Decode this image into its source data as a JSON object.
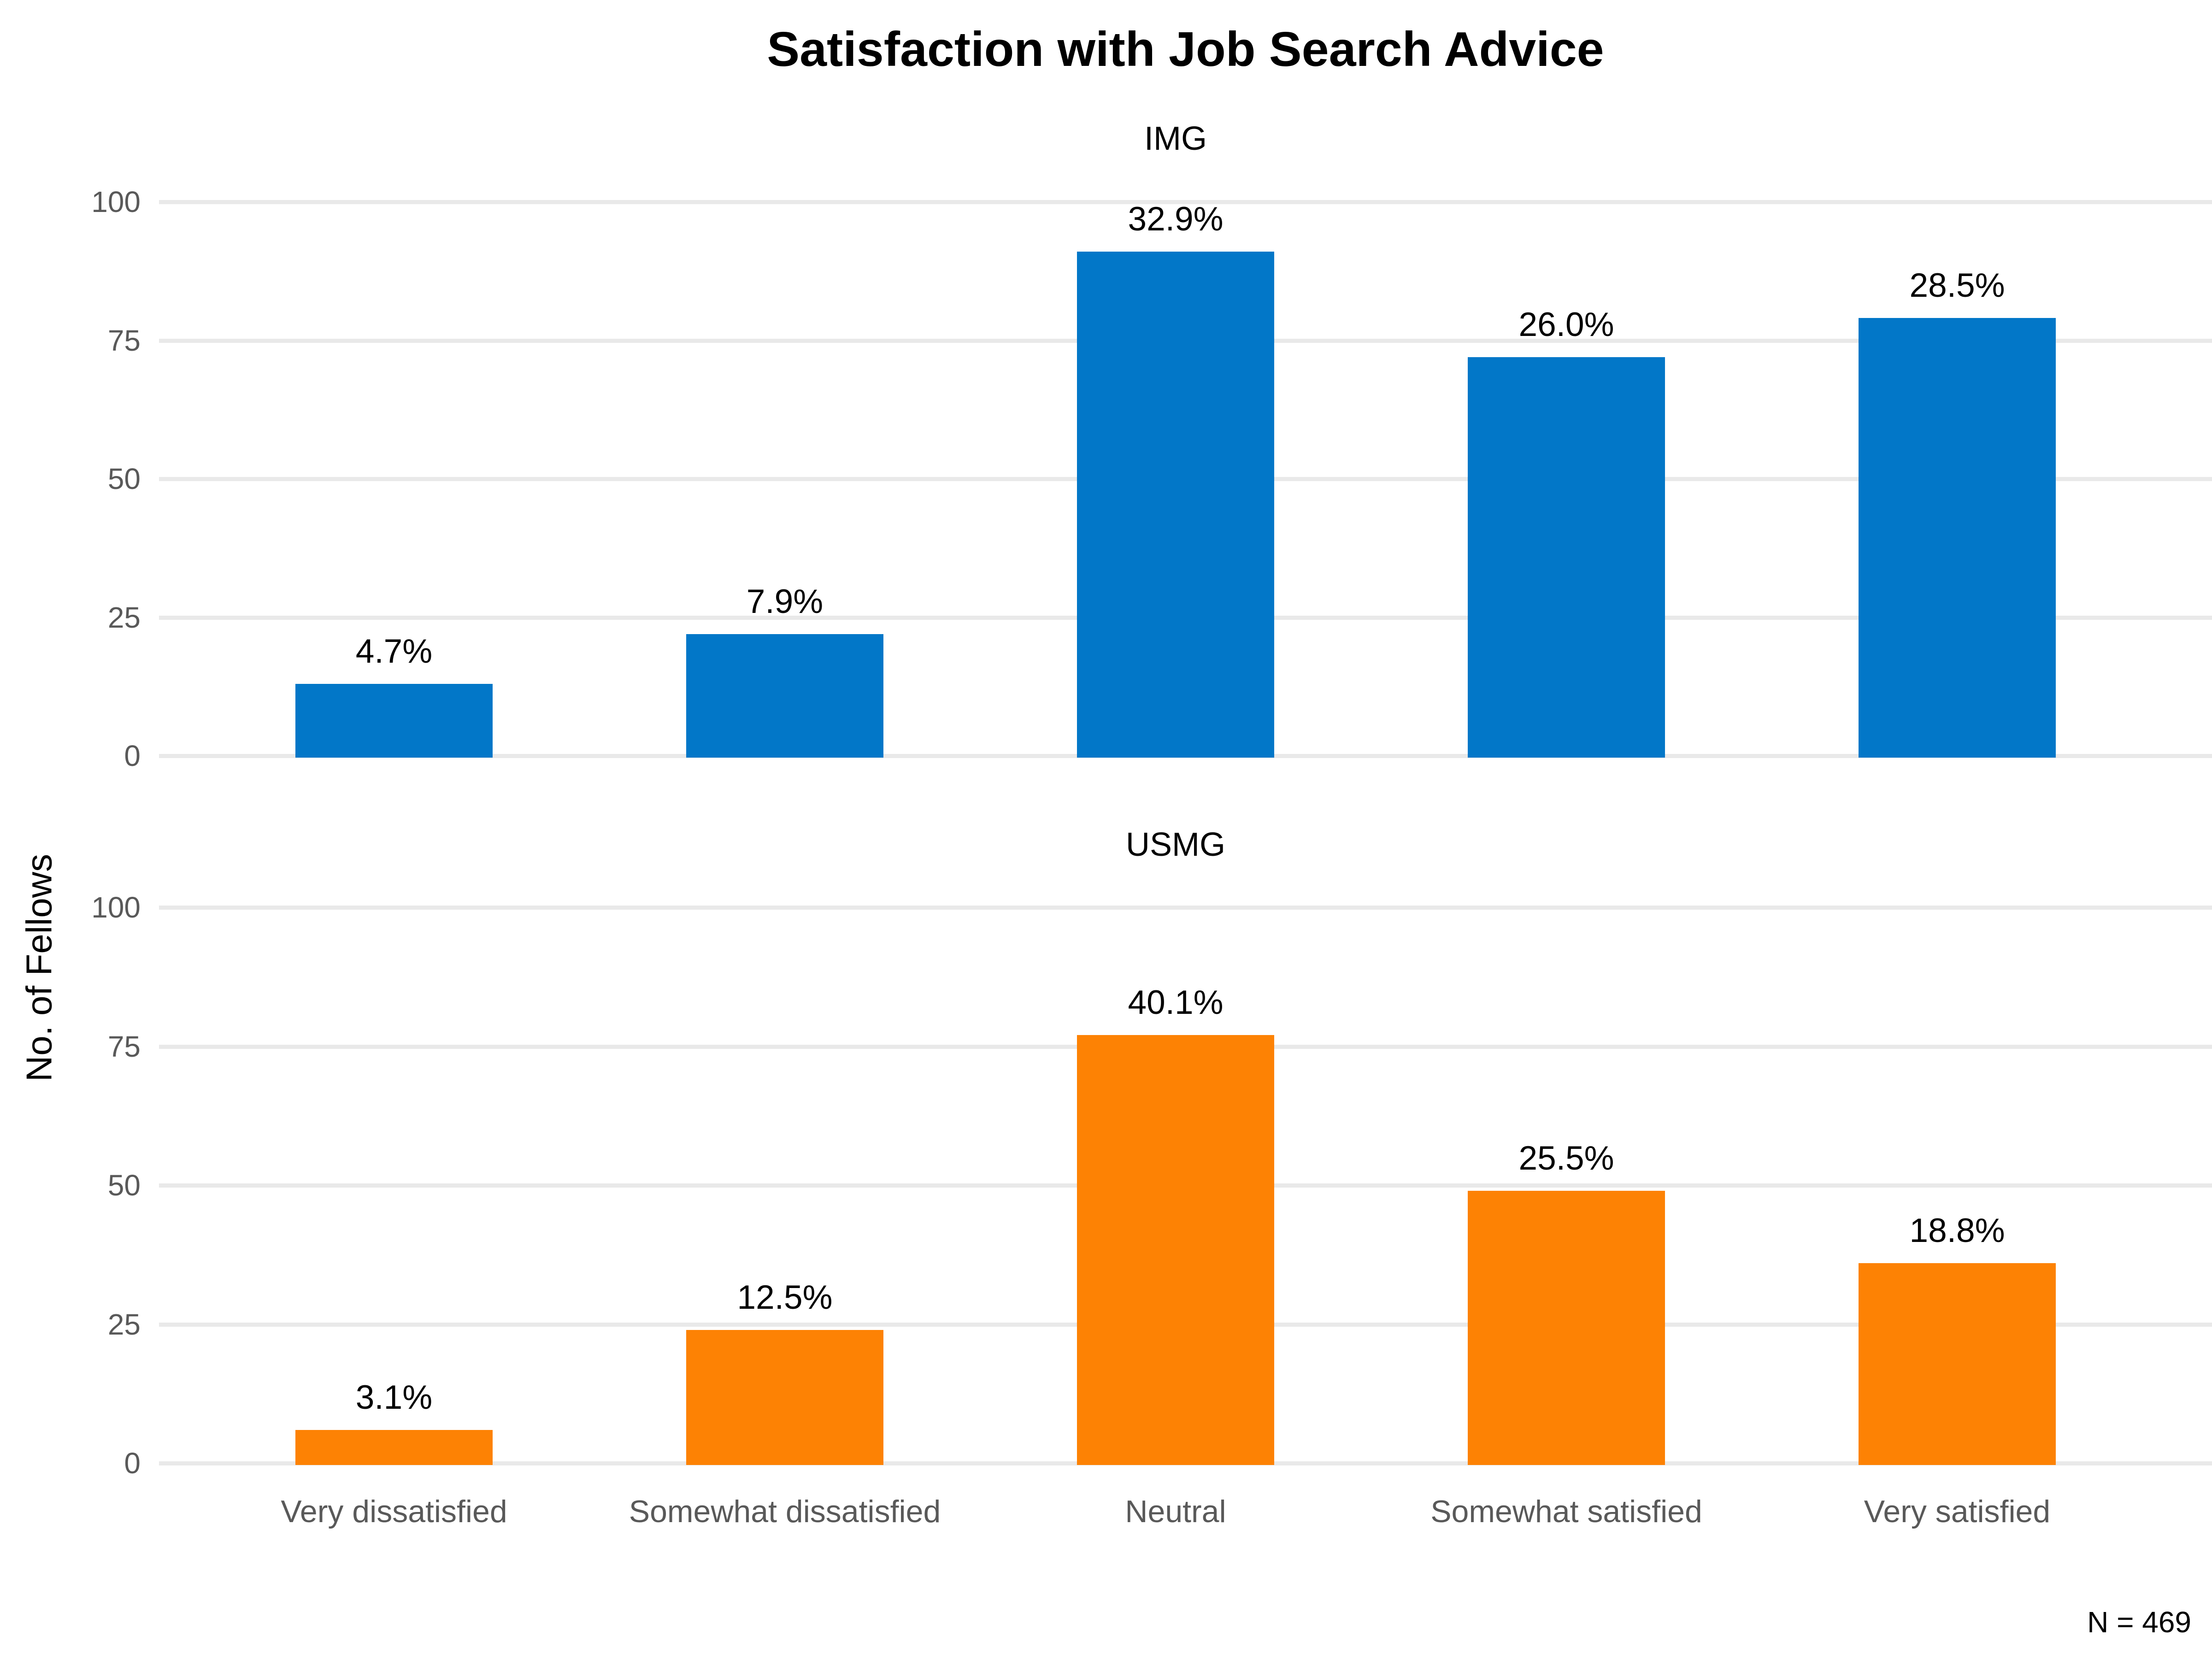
{
  "chart_data": {
    "type": "bar",
    "title": "Satisfaction with Job Search Advice",
    "ylabel": "No. of Fellows",
    "xlabel": "",
    "note": "N = 469",
    "categories": [
      "Very dissatisfied",
      "Somewhat dissatisfied",
      "Neutral",
      "Somewhat satisfied",
      "Very satisfied"
    ],
    "yticks": [
      0,
      25,
      50,
      75,
      100
    ],
    "ylim": [
      0,
      100
    ],
    "grid": true,
    "legend_position": "none",
    "facets": [
      {
        "name": "IMG",
        "color": "#0277C8",
        "values": [
          13,
          22,
          91,
          72,
          79
        ],
        "bar_labels": [
          "4.7%",
          "7.9%",
          "32.9%",
          "26.0%",
          "28.5%"
        ]
      },
      {
        "name": "USMG",
        "color": "#FD8204",
        "values": [
          6,
          24,
          77,
          49,
          36
        ],
        "bar_labels": [
          "3.1%",
          "12.5%",
          "40.1%",
          "25.5%",
          "18.8%"
        ]
      }
    ],
    "colors": {
      "gridline": "#E9E9E9",
      "axis_text": "#595959",
      "label_text": "#000000",
      "background": "#FFFFFF"
    }
  }
}
